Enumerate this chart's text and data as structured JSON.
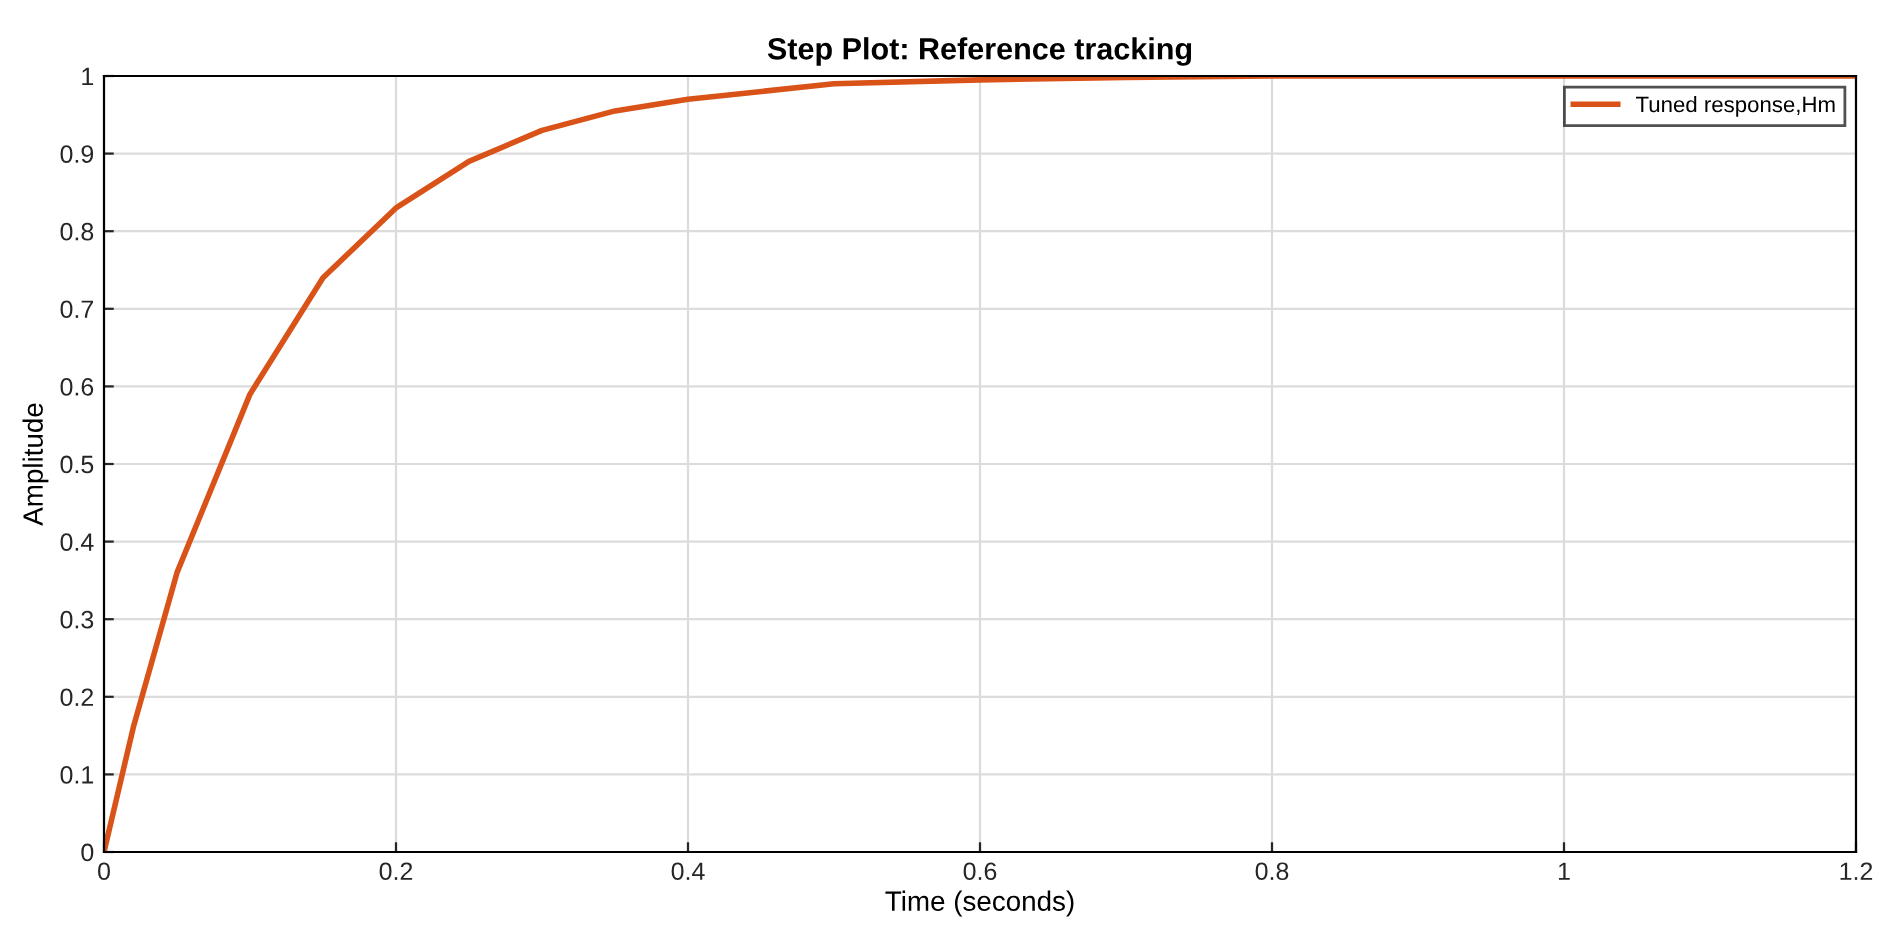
{
  "chart_data": {
    "type": "line",
    "title": "Step Plot: Reference tracking",
    "xlabel": "Time (seconds)",
    "ylabel": "Amplitude",
    "series": [
      {
        "name": "Tuned response,Hm",
        "color": "#d95319",
        "x": [
          0,
          0.02,
          0.05,
          0.1,
          0.15,
          0.2,
          0.25,
          0.3,
          0.35,
          0.4,
          0.5,
          0.6,
          0.7,
          0.8,
          1.0,
          1.2
        ],
        "values": [
          0,
          0.16,
          0.36,
          0.59,
          0.74,
          0.83,
          0.89,
          0.93,
          0.955,
          0.97,
          0.99,
          0.995,
          0.998,
          1,
          1,
          1
        ]
      }
    ],
    "xlim": [
      0,
      1.2
    ],
    "xticks": [
      0,
      0.2,
      0.4,
      0.6,
      0.8,
      1,
      1.2
    ],
    "ylim": [
      0,
      1
    ],
    "yticks": [
      0,
      0.1,
      0.2,
      0.3,
      0.4,
      0.5,
      0.6,
      0.7,
      0.8,
      0.9,
      1
    ],
    "grid": true,
    "legend": "top right",
    "marker": "none",
    "line_style": "solid"
  }
}
